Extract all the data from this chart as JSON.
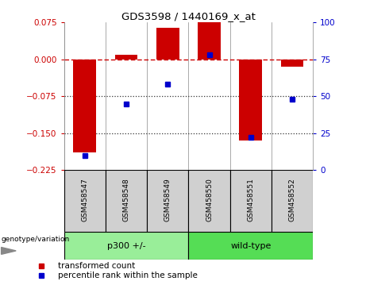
{
  "title": "GDS3598 / 1440169_x_at",
  "samples": [
    "GSM458547",
    "GSM458548",
    "GSM458549",
    "GSM458550",
    "GSM458551",
    "GSM458552"
  ],
  "red_values": [
    -0.19,
    0.01,
    0.065,
    0.075,
    -0.165,
    -0.015
  ],
  "blue_values": [
    10,
    45,
    58,
    78,
    22,
    48
  ],
  "ylim_left": [
    -0.225,
    0.075
  ],
  "ylim_right": [
    0,
    100
  ],
  "yticks_left": [
    0.075,
    0,
    -0.075,
    -0.15,
    -0.225
  ],
  "yticks_right": [
    100,
    75,
    50,
    25,
    0
  ],
  "group1_label": "p300 +/-",
  "group2_label": "wild-type",
  "group1_indices": [
    0,
    1,
    2
  ],
  "group2_indices": [
    3,
    4,
    5
  ],
  "legend_red": "transformed count",
  "legend_blue": "percentile rank within the sample",
  "genotype_label": "genotype/variation",
  "hline_color": "#cc0000",
  "bar_color": "#cc0000",
  "dot_color": "#0000cc",
  "group1_color": "#99ee99",
  "group2_color": "#55dd55",
  "bg_color": "#ffffff",
  "dotted_line_color": "#333333",
  "bar_width": 0.55
}
